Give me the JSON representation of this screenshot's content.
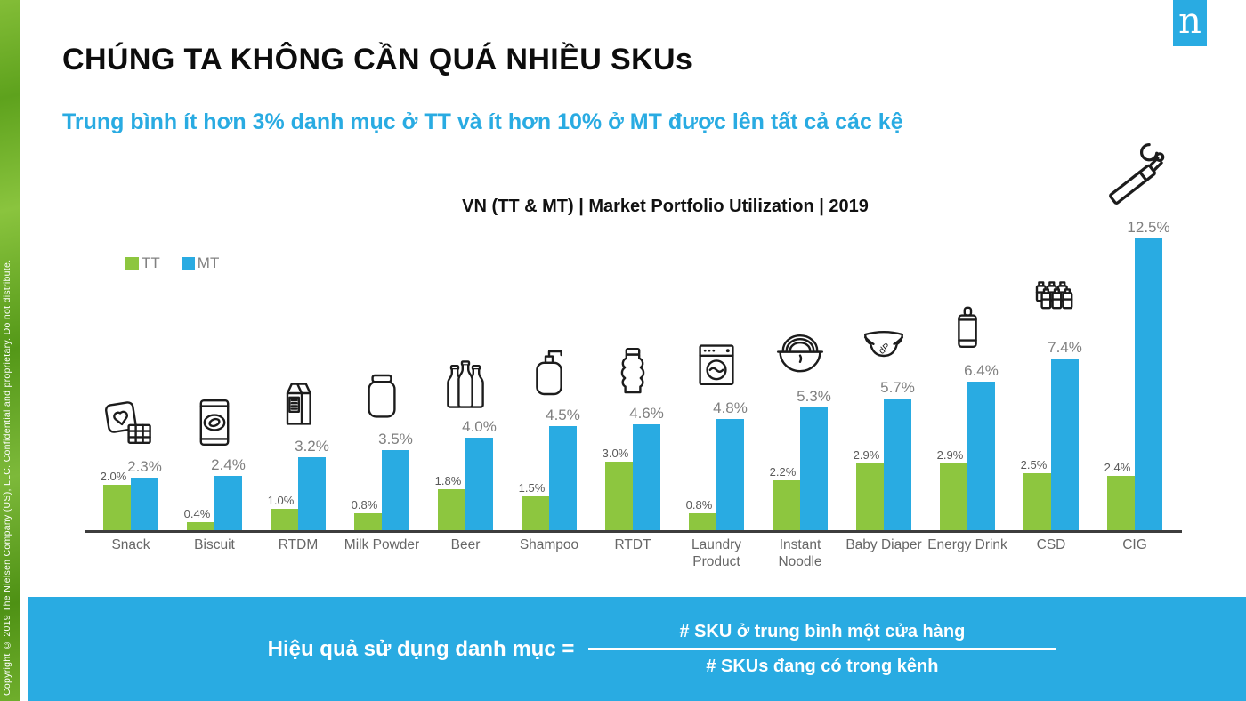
{
  "slide": {
    "title": "CHÚNG TA KHÔNG CẦN QUÁ NHIỀU SKUs",
    "subtitle": "Trung bình ít hơn 3% danh mục ở TT và ít hơn 10% ở MT được lên tất cả các kệ",
    "sidebar_copyright": "Copyright © 2019 The Nielsen Company (US), LLC. Confidential and proprietary. Do not distribute.",
    "logo_letter": "n"
  },
  "chart_data": {
    "type": "bar",
    "title": "VN (TT & MT) | Market Portfolio Utilization | 2019",
    "categories": [
      "Snack",
      "Biscuit",
      "RTDM",
      "Milk Powder",
      "Beer",
      "Shampoo",
      "RTDT",
      "Laundry Product",
      "Instant Noodle",
      "Baby Diaper",
      "Energy Drink",
      "CSD",
      "CIG"
    ],
    "icons": [
      "snack-icon",
      "biscuit-bag-icon",
      "milk-carton-icon",
      "milk-powder-jar-icon",
      "beer-bottles-icon",
      "shampoo-bottle-icon",
      "rtd-tea-bottle-icon",
      "washing-machine-icon",
      "noodle-bowl-icon",
      "baby-diaper-icon",
      "energy-drink-can-icon",
      "csd-bottles-icon",
      "cigarette-icon"
    ],
    "series": [
      {
        "name": "TT",
        "color": "#8DC63F",
        "values": [
          2.0,
          0.4,
          1.0,
          0.8,
          1.8,
          1.5,
          3.0,
          0.8,
          2.2,
          2.9,
          2.9,
          2.5,
          2.4
        ]
      },
      {
        "name": "MT",
        "color": "#29ABE2",
        "values": [
          2.3,
          2.4,
          3.2,
          3.5,
          4.0,
          4.5,
          4.6,
          4.8,
          5.3,
          5.7,
          6.4,
          7.4,
          12.5
        ]
      }
    ],
    "value_suffix": "%",
    "ylim": [
      0,
      13
    ],
    "grid": false,
    "legend_position": "top-left"
  },
  "formula": {
    "label": "Hiệu quả sử dụng danh mục =",
    "numerator": "# SKU ở trung bình một cửa hàng",
    "denominator": "# SKUs đang có trong kênh"
  },
  "colors": {
    "accent_blue": "#29ABE2",
    "bar_green": "#8DC63F",
    "axis_dark": "#3d3d3d",
    "label_gray": "#7f7f7f"
  }
}
